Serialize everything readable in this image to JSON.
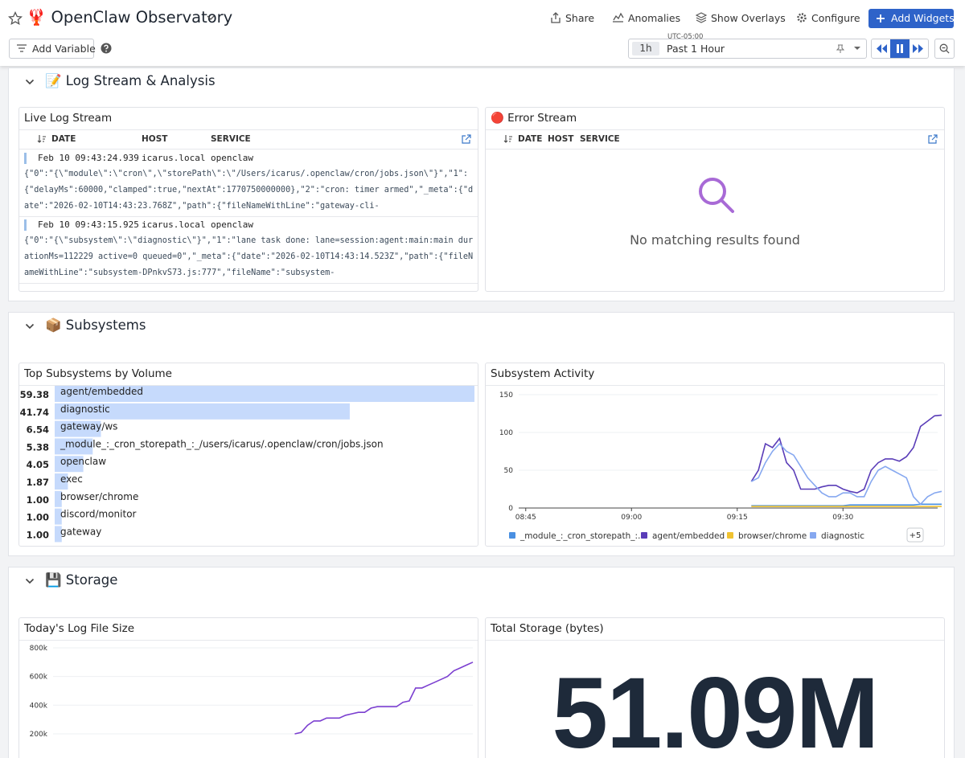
{
  "header": {
    "title": "🦞 OpenClaw Observatory",
    "actions": [
      "Share",
      "Anomalies",
      "Show Overlays",
      "Configure",
      "Add Widgets"
    ],
    "add_variable": "Add Variable",
    "timezone": "UTC-05:00",
    "time_short": "1h",
    "time_range": "Past 1 Hour"
  },
  "sections": [
    {
      "title": "📝 Log Stream & Analysis",
      "widgets": [
        {
          "title": "Live Log Stream",
          "columns": [
            "DATE",
            "HOST",
            "SERVICE"
          ],
          "entries": [
            {
              "date": "Feb 10 09:43:24.939",
              "host": "icarus.local",
              "service": "openclaw",
              "message": "{\"0\":\"{\\\"module\\\":\\\"cron\\\",\\\"storePath\\\":\\\"/Users/icarus/.openclaw/cron/jobs.json\\\"}\",\"1\":{\"delayMs\":60000,\"clamped\":true,\"nextAt\":1770750000000},\"2\":\"cron: timer armed\",\"_meta\":{\"date\":\"2026-02-10T14:43:23.768Z\",\"path\":{\"fileNameWithLine\":\"gateway-cli-"
            },
            {
              "date": "Feb 10 09:43:15.925",
              "host": "icarus.local",
              "service": "openclaw",
              "message": "{\"0\":\"{\\\"subsystem\\\":\\\"diagnostic\\\"}\",\"1\":\"lane task done: lane=session:agent:main:main durationMs=112229 active=0 queued=0\",\"_meta\":{\"date\":\"2026-02-10T14:43:14.523Z\",\"path\":{\"fileNameWithLine\":\"subsystem-DPnkvS73.js:777\",\"fileName\":\"subsystem-"
            }
          ]
        },
        {
          "title": "🔴 Error Stream",
          "columns": [
            "DATE",
            "HOST",
            "SERVICE"
          ],
          "empty_text": "No matching results found"
        }
      ]
    },
    {
      "title": "📦 Subsystems",
      "widgets": [
        {
          "title": "Top Subsystems by Volume",
          "chart_data": {
            "type": "bar",
            "orientation": "horizontal",
            "categories": [
              "agent/embedded",
              "diagnostic",
              "gateway/ws",
              "_module_:_cron_storepath_:_/users/icarus/.openclaw/cron/jobs.json",
              "openclaw",
              "exec",
              "browser/chrome",
              "discord/monitor",
              "gateway"
            ],
            "values": [
              59.38,
              41.74,
              6.54,
              5.38,
              4.05,
              1.87,
              1,
              1,
              1
            ],
            "value_labels": [
              "59.38",
              "41.74",
              "6.54",
              "5.38",
              "4.05",
              "1.87",
              "1.00",
              "1.00",
              "1.00"
            ],
            "color": "#c6dafc"
          }
        },
        {
          "title": "Subsystem Activity",
          "chart_data": {
            "type": "line",
            "x": [
              "09:17",
              "09:18",
              "09:19",
              "09:20",
              "09:21",
              "09:22",
              "09:23",
              "09:24",
              "09:25",
              "09:26",
              "09:27",
              "09:28",
              "09:29",
              "09:30",
              "09:31",
              "09:32",
              "09:33",
              "09:34",
              "09:35",
              "09:36",
              "09:37",
              "09:38",
              "09:39",
              "09:40",
              "09:41",
              "09:42",
              "09:43",
              "09:44"
            ],
            "xlim": [
              "08:44",
              "09:44"
            ],
            "xticks": [
              "08:45",
              "09:00",
              "09:15",
              "09:30"
            ],
            "ylim": [
              0,
              150
            ],
            "yticks": [
              0,
              50,
              100,
              150
            ],
            "series": [
              {
                "name": "_module_:_cron_storepath_:…",
                "color": "#4a90e2",
                "values": [
                  3,
                  3,
                  3,
                  3,
                  3,
                  3,
                  3,
                  3,
                  3,
                  3,
                  3,
                  3,
                  3,
                  3,
                  4,
                  4,
                  4,
                  4,
                  4,
                  4,
                  4,
                  4,
                  4,
                  4,
                  5,
                  5,
                  5,
                  5
                ]
              },
              {
                "name": "agent/embedded",
                "color": "#5a3db8",
                "values": [
                  35,
                  50,
                  85,
                  80,
                  92,
                  60,
                  50,
                  25,
                  25,
                  25,
                  28,
                  30,
                  30,
                  25,
                  22,
                  20,
                  25,
                  50,
                  60,
                  65,
                  65,
                  62,
                  68,
                  80,
                  108,
                  115,
                  122,
                  123
                ]
              },
              {
                "name": "browser/chrome",
                "color": "#f0c230",
                "values": [
                  2,
                  2,
                  2,
                  2,
                  2,
                  2,
                  2,
                  2,
                  2,
                  2,
                  2,
                  2,
                  2,
                  2,
                  2,
                  2,
                  2,
                  2,
                  2,
                  2,
                  2,
                  2,
                  2,
                  2,
                  2,
                  2,
                  2,
                  2
                ]
              },
              {
                "name": "diagnostic",
                "color": "#86a8f0",
                "values": [
                  35,
                  40,
                  60,
                  75,
                  85,
                  75,
                  70,
                  55,
                  40,
                  30,
                  20,
                  15,
                  15,
                  20,
                  20,
                  15,
                  15,
                  35,
                  50,
                  55,
                  50,
                  45,
                  40,
                  15,
                  5,
                  15,
                  20,
                  22
                ]
              }
            ],
            "legend_more": "+5"
          }
        }
      ]
    },
    {
      "title": "💾 Storage",
      "widgets": [
        {
          "title": "Today's Log File Size",
          "chart_data": {
            "type": "line",
            "color": "#7b3fd0",
            "values": [
              null,
              null,
              null,
              null,
              null,
              null,
              null,
              null,
              null,
              null,
              null,
              null,
              null,
              null,
              null,
              null,
              null,
              null,
              null,
              null,
              null,
              null,
              null,
              null,
              null,
              null,
              null,
              null,
              null,
              null,
              null,
              null,
              null,
              null,
              null,
              null,
              null,
              null,
              200000,
              210000,
              260000,
              290000,
              290000,
              310000,
              310000,
              310000,
              330000,
              340000,
              350000,
              350000,
              380000,
              390000,
              390000,
              390000,
              390000,
              420000,
              430000,
              520000,
              520000,
              540000,
              560000,
              580000,
              600000,
              640000,
              660000,
              680000,
              700000
            ],
            "ylim": [
              0,
              800000
            ],
            "yticks": [
              {
                "value": 200000,
                "label": "200k"
              },
              {
                "value": 400000,
                "label": "400k"
              },
              {
                "value": 600000,
                "label": "600k"
              },
              {
                "value": 800000,
                "label": "800k"
              }
            ]
          }
        },
        {
          "title": "Total Storage (bytes)",
          "value": "51.09M"
        }
      ]
    }
  ]
}
